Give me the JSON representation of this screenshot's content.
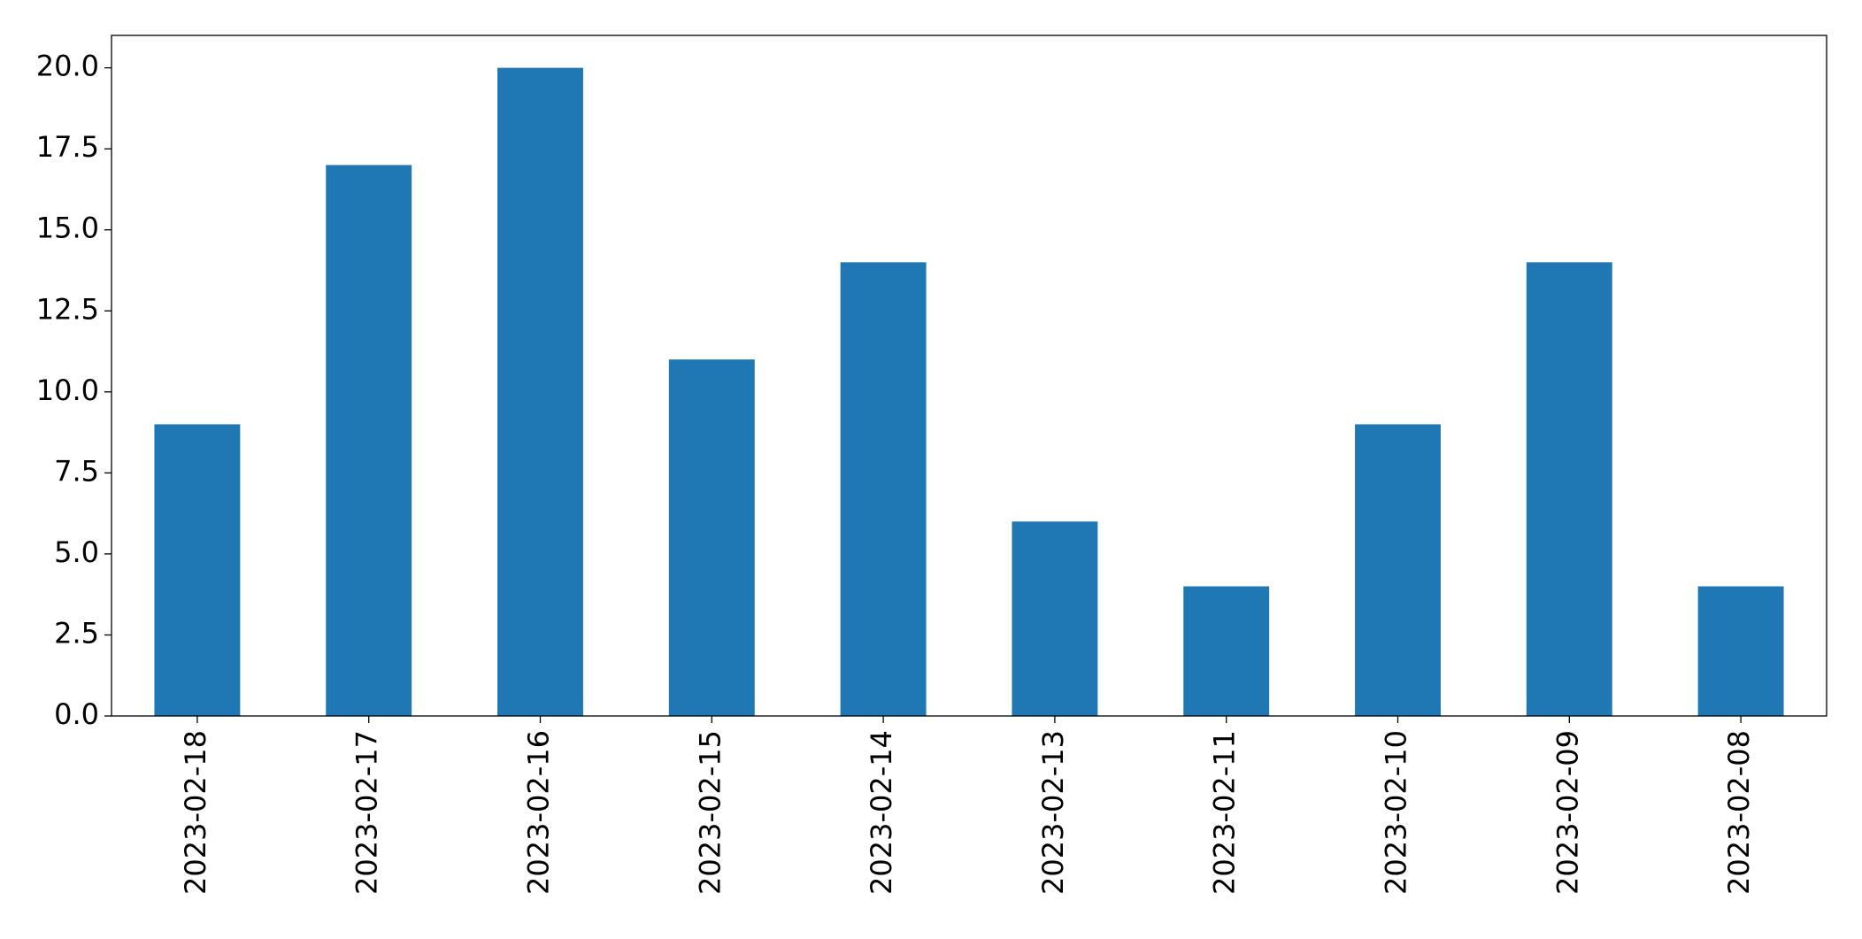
{
  "chart_data": {
    "type": "bar",
    "categories": [
      "2023-02-18",
      "2023-02-17",
      "2023-02-16",
      "2023-02-15",
      "2023-02-14",
      "2023-02-13",
      "2023-02-11",
      "2023-02-10",
      "2023-02-09",
      "2023-02-08"
    ],
    "values": [
      9,
      17,
      20,
      11,
      14,
      6,
      4,
      9,
      14,
      4
    ],
    "color": "#1f77b4",
    "ylim": [
      0,
      21
    ],
    "yticks": [
      {
        "value": 0,
        "label": "0.0"
      },
      2.5,
      {
        "value": 5,
        "label": "5.0"
      },
      7.5,
      {
        "value": 10,
        "label": "10.0"
      },
      12.5,
      {
        "value": 15,
        "label": "15.0"
      },
      17.5,
      {
        "value": 20,
        "label": "20.0"
      }
    ],
    "grid": false
  }
}
